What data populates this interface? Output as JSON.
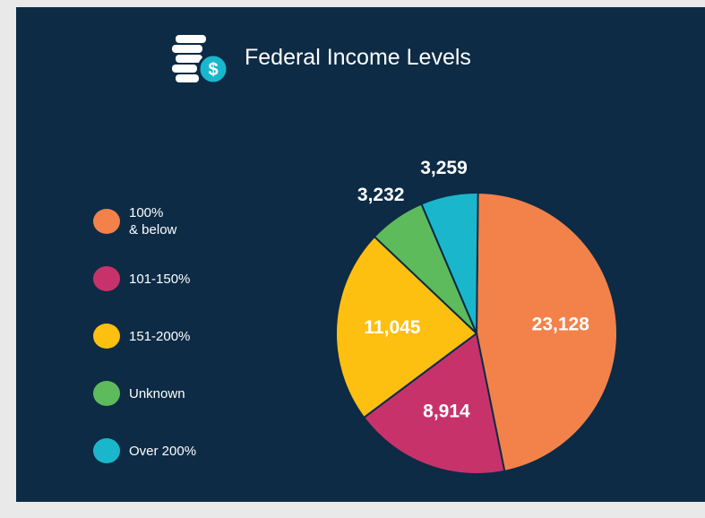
{
  "chart_data": {
    "type": "pie",
    "title": "Federal Income Levels",
    "categories": [
      "100%\n& below",
      "101-150%",
      "151-200%",
      "Unknown",
      "Over 200%"
    ],
    "values": [
      23128,
      8914,
      11045,
      3232,
      3259
    ],
    "value_labels": [
      "23,128",
      "8,914",
      "11,045",
      "3,232",
      "3,259"
    ],
    "colors": [
      "#f2824a",
      "#c8326b",
      "#fdc010",
      "#5dbb5b",
      "#1ab7cc"
    ],
    "legend": "left"
  }
}
